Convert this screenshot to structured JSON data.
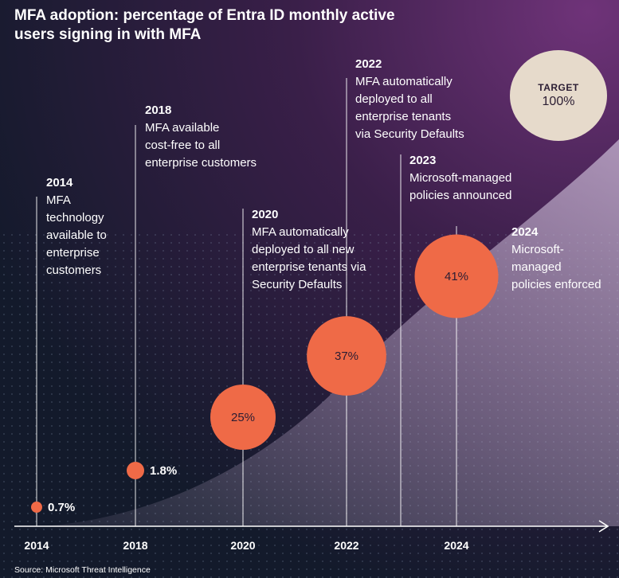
{
  "title_lines": [
    "MFA adoption: percentage of Entra ID monthly active",
    "users signing in with MFA"
  ],
  "source": "Source: Microsoft Threat Intelligence",
  "target": {
    "label": "TARGET",
    "value": "100%"
  },
  "colors": {
    "bubble": "#ef6a47",
    "target_bubble": "#e6dacb",
    "background_top": "#6a2f78",
    "background_bottom": "#111827",
    "curve_fill": "#b9a7c6"
  },
  "chart_data": {
    "type": "scatter",
    "x_axis": {
      "tick_labels": [
        "2014",
        "2018",
        "2020",
        "2022",
        "2024"
      ]
    },
    "points": [
      {
        "year": 2014,
        "value": 0.7,
        "label": "0.7%"
      },
      {
        "year": 2018,
        "value": 1.8,
        "label": "1.8%"
      },
      {
        "year": 2020,
        "value": 25,
        "label": "25%"
      },
      {
        "year": 2022,
        "value": 37,
        "label": "37%"
      },
      {
        "year": 2024,
        "value": 41,
        "label": "41%"
      }
    ],
    "milestones": [
      {
        "year": "2014",
        "lines": [
          "MFA",
          "technology",
          "available to",
          "enterprise",
          "customers"
        ]
      },
      {
        "year": "2018",
        "lines": [
          "MFA available",
          "cost-free to all",
          "enterprise customers"
        ]
      },
      {
        "year": "2020",
        "lines": [
          "MFA automatically",
          "deployed to all new",
          "enterprise tenants via",
          "Security Defaults"
        ]
      },
      {
        "year": "2022",
        "lines": [
          "MFA automatically",
          "deployed to all",
          "enterprise tenants",
          "via Security Defaults"
        ]
      },
      {
        "year": "2023",
        "lines": [
          "Microsoft-managed",
          "policies announced"
        ]
      },
      {
        "year": "2024",
        "lines": [
          "Microsoft-",
          "managed",
          "policies enforced"
        ]
      }
    ]
  }
}
